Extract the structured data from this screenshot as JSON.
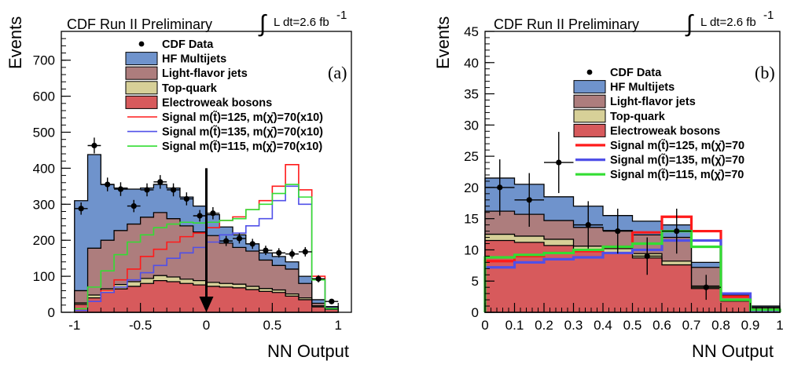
{
  "header": {
    "experiment": "CDF Run II Preliminary",
    "luminosity": "L dt=2.6 fb",
    "luminosity_exp": "-1"
  },
  "colors": {
    "hf": "#6f93cc",
    "lf": "#ad7d7d",
    "top": "#d7d098",
    "ew": "#d75a5c",
    "sig125": "#ff1a1a",
    "sig135": "#5050e8",
    "sig115": "#33dd33"
  },
  "chart_data": [
    {
      "type": "stacked-histogram",
      "panel_label": "(a)",
      "xlabel": "NN Output",
      "ylabel": "Events",
      "xlim": [
        -1.1,
        1.1
      ],
      "ylim": [
        0,
        780
      ],
      "x_ticks": [
        -1,
        -0.5,
        0,
        0.5,
        1
      ],
      "x_tick_labels": [
        "-1",
        "-0.5",
        "0",
        "0.5",
        "1"
      ],
      "y_ticks": [
        0,
        100,
        200,
        300,
        400,
        500,
        600,
        700
      ],
      "bin_edges": [
        -1.0,
        -0.9,
        -0.8,
        -0.7,
        -0.6,
        -0.5,
        -0.4,
        -0.3,
        -0.2,
        -0.1,
        0.0,
        0.1,
        0.2,
        0.3,
        0.4,
        0.5,
        0.6,
        0.7,
        0.8,
        0.9,
        1.0
      ],
      "stack": [
        {
          "name": "Electroweak bosons",
          "color_key": "ew",
          "values": [
            22,
            40,
            55,
            65,
            72,
            80,
            88,
            85,
            80,
            76,
            72,
            70,
            68,
            63,
            58,
            55,
            45,
            35,
            15,
            8
          ]
        },
        {
          "name": "Top-quark",
          "color_key": "top",
          "values": [
            4,
            8,
            10,
            12,
            13,
            14,
            14,
            13,
            12,
            12,
            11,
            10,
            10,
            9,
            8,
            7,
            6,
            5,
            3,
            1
          ]
        },
        {
          "name": "Light-flavor jets",
          "color_key": "lf",
          "values": [
            34,
            130,
            135,
            150,
            160,
            170,
            175,
            162,
            148,
            135,
            130,
            112,
            102,
            98,
            79,
            68,
            69,
            40,
            7,
            3
          ]
        },
        {
          "name": "HF Multijets",
          "color_key": "hf",
          "values": [
            250,
            260,
            155,
            118,
            97,
            81,
            78,
            85,
            80,
            72,
            58,
            45,
            35,
            20,
            20,
            25,
            20,
            20,
            10,
            4
          ]
        }
      ],
      "signals": [
        {
          "name": "Signal m(t̃)=125, m(χ̄)=70(x10)",
          "color_key": "sig125",
          "values": [
            5,
            30,
            60,
            90,
            120,
            155,
            175,
            195,
            210,
            220,
            235,
            255,
            265,
            285,
            310,
            350,
            410,
            340,
            100,
            10
          ]
        },
        {
          "name": "Signal m(t̃)=135, m(χ̄)=70(x10)",
          "color_key": "sig135",
          "values": [
            5,
            30,
            55,
            70,
            90,
            110,
            130,
            150,
            165,
            180,
            195,
            215,
            220,
            240,
            260,
            310,
            350,
            300,
            90,
            10
          ]
        },
        {
          "name": "Signal m(t̃)=115, m(χ̄)=70(x10)",
          "color_key": "sig115",
          "values": [
            10,
            70,
            115,
            160,
            195,
            215,
            235,
            245,
            250,
            248,
            250,
            255,
            260,
            285,
            300,
            330,
            355,
            320,
            90,
            10
          ]
        }
      ],
      "data": {
        "name": "CDF Data",
        "x": [
          -0.95,
          -0.85,
          -0.75,
          -0.65,
          -0.55,
          -0.45,
          -0.35,
          -0.25,
          -0.15,
          -0.05,
          0.05,
          0.15,
          0.25,
          0.35,
          0.45,
          0.55,
          0.65,
          0.75,
          0.85,
          0.95
        ],
        "y": [
          288,
          463,
          355,
          342,
          295,
          340,
          362,
          340,
          315,
          268,
          275,
          198,
          205,
          190,
          172,
          165,
          162,
          168,
          93,
          30
        ],
        "err": [
          17,
          22,
          19,
          19,
          17,
          18,
          19,
          18,
          18,
          16,
          17,
          14,
          14,
          14,
          13,
          13,
          13,
          13,
          10,
          6
        ]
      },
      "annotation": {
        "type": "arrow",
        "x": 0,
        "direction": "down",
        "from_y": 400,
        "to_y": 0
      },
      "legend_placement": "top-center"
    },
    {
      "type": "stacked-histogram",
      "panel_label": "(b)",
      "xlabel": "NN Output",
      "ylabel": "Events",
      "xlim": [
        0,
        1
      ],
      "ylim": [
        0,
        45
      ],
      "x_ticks": [
        0,
        0.1,
        0.2,
        0.3,
        0.4,
        0.5,
        0.6,
        0.7,
        0.8,
        0.9,
        1
      ],
      "x_tick_labels": [
        "0",
        "0.1",
        "0.2",
        "0.3",
        "0.4",
        "0.5",
        "0.6",
        "0.7",
        "0.8",
        "0.9",
        "1"
      ],
      "y_ticks": [
        0,
        5,
        10,
        15,
        20,
        25,
        30,
        35,
        40,
        45
      ],
      "bin_edges": [
        0.0,
        0.1,
        0.2,
        0.3,
        0.4,
        0.5,
        0.6,
        0.7,
        0.8,
        0.9,
        1.0
      ],
      "stack": [
        {
          "name": "Electroweak bosons",
          "color_key": "ew",
          "values": [
            11.5,
            11.2,
            10.7,
            9.7,
            9.4,
            8.7,
            7.6,
            3.8,
            1.8,
            0.5
          ]
        },
        {
          "name": "Top-quark",
          "color_key": "top",
          "values": [
            1.0,
            1.0,
            1.0,
            0.9,
            0.8,
            0.7,
            0.6,
            0.4,
            0.2,
            0.1
          ]
        },
        {
          "name": "Light-flavor jets",
          "color_key": "lf",
          "values": [
            3.7,
            3.5,
            3.0,
            3.0,
            2.9,
            3.0,
            3.8,
            3.0,
            0.8,
            0.2
          ]
        },
        {
          "name": "HF Multijets",
          "color_key": "hf",
          "values": [
            5.3,
            4.8,
            3.8,
            3.4,
            2.4,
            2.2,
            2.0,
            0.8,
            0.2,
            0.2
          ]
        }
      ],
      "signals": [
        {
          "name": "Signal m(t̃)=125, m(χ̄)=70",
          "color_key": "sig125",
          "values": [
            8.2,
            9.0,
            9.5,
            9.8,
            10.5,
            12.8,
            15.3,
            13.0,
            2.5,
            0.3
          ]
        },
        {
          "name": "Signal m(t̃)=135, m(χ̄)=70",
          "color_key": "sig135",
          "values": [
            7.2,
            8.0,
            8.5,
            8.8,
            9.5,
            10.0,
            11.5,
            11.5,
            3.0,
            0.3
          ]
        },
        {
          "name": "Signal m(t̃)=115, m(χ̄)=70",
          "color_key": "sig115",
          "values": [
            8.8,
            9.2,
            9.5,
            10.0,
            10.5,
            11.0,
            13.0,
            10.5,
            2.0,
            0.4
          ]
        }
      ],
      "data": {
        "name": "CDF Data",
        "x": [
          0.05,
          0.15,
          0.25,
          0.35,
          0.45,
          0.55,
          0.65,
          0.75
        ],
        "y": [
          20,
          18,
          24,
          14,
          13,
          9,
          13,
          4
        ],
        "err": [
          4.5,
          4.3,
          4.9,
          3.8,
          3.6,
          3.0,
          3.6,
          2.0
        ]
      },
      "legend_placement": "top-center"
    }
  ]
}
